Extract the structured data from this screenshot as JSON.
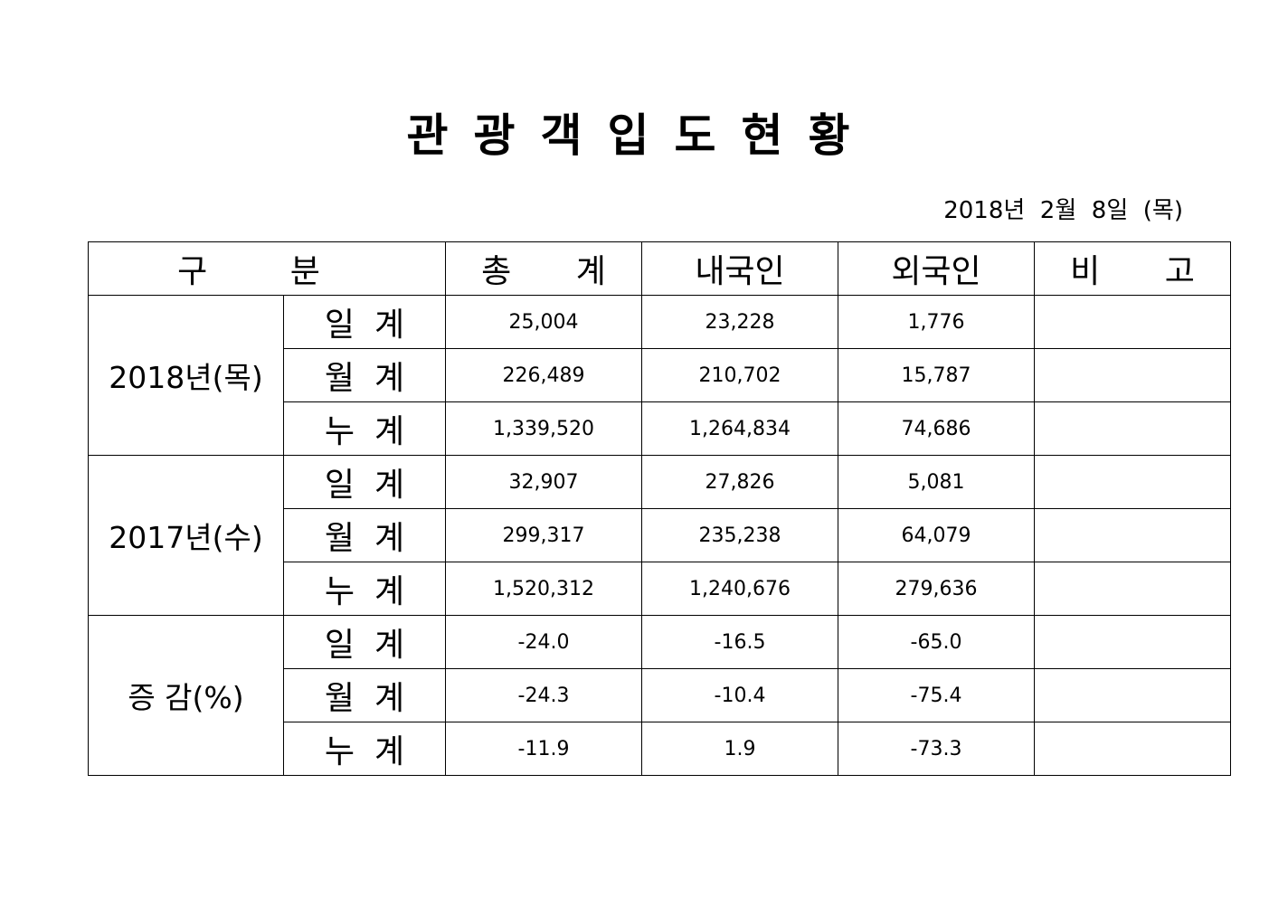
{
  "title": "관광객입도현황",
  "date": "2018년  2월  8일  (목)",
  "headers": {
    "category": "구 분",
    "total": "총 계",
    "domestic": "내국인",
    "foreign": "외국인",
    "note": "비 고"
  },
  "groups": [
    {
      "label": "2018년(목)",
      "rows": [
        {
          "sub": "일계",
          "total": "25,004",
          "domestic": "23,228",
          "foreign": "1,776",
          "note": ""
        },
        {
          "sub": "월계",
          "total": "226,489",
          "domestic": "210,702",
          "foreign": "15,787",
          "note": ""
        },
        {
          "sub": "누계",
          "total": "1,339,520",
          "domestic": "1,264,834",
          "foreign": "74,686",
          "note": ""
        }
      ]
    },
    {
      "label": "2017년(수)",
      "rows": [
        {
          "sub": "일계",
          "total": "32,907",
          "domestic": "27,826",
          "foreign": "5,081",
          "note": ""
        },
        {
          "sub": "월계",
          "total": "299,317",
          "domestic": "235,238",
          "foreign": "64,079",
          "note": ""
        },
        {
          "sub": "누계",
          "total": "1,520,312",
          "domestic": "1,240,676",
          "foreign": "279,636",
          "note": ""
        }
      ]
    },
    {
      "label": "증 감(%)",
      "rows": [
        {
          "sub": "일계",
          "total": "-24.0",
          "domestic": "-16.5",
          "foreign": "-65.0",
          "note": ""
        },
        {
          "sub": "월계",
          "total": "-24.3",
          "domestic": "-10.4",
          "foreign": "-75.4",
          "note": ""
        },
        {
          "sub": "누계",
          "total": "-11.9",
          "domestic": "1.9",
          "foreign": "-73.3",
          "note": ""
        }
      ]
    }
  ]
}
